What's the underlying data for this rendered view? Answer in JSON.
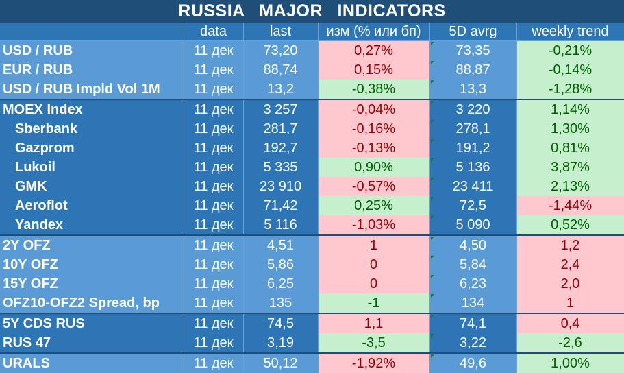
{
  "title": "RUSSIA   MAJOR   INDICATORS",
  "columns": [
    "",
    "data",
    "last",
    "изм (% или бп)",
    "5D avrg",
    "weekly trend"
  ],
  "rows": [
    {
      "name": "USD / RUB",
      "date": "11 дек",
      "last": "73,20",
      "chg": "0,27%",
      "chg_dir": "neg",
      "avg": "73,35",
      "trend": "-0,21%",
      "trend_dir": "pos",
      "group": "light",
      "indent": false,
      "sep": false
    },
    {
      "name": "EUR / RUB",
      "date": "11 дек",
      "last": "88,74",
      "chg": "0,15%",
      "chg_dir": "neg",
      "avg": "88,87",
      "trend": "-0,14%",
      "trend_dir": "pos",
      "group": "light",
      "indent": false,
      "sep": false
    },
    {
      "name": "USD / RUB Impld Vol 1M",
      "date": "11 дек",
      "last": "13,2",
      "chg": "-0,38%",
      "chg_dir": "pos",
      "avg": "13,3",
      "trend": "-1,28%",
      "trend_dir": "pos",
      "group": "light",
      "indent": false,
      "sep": false
    },
    {
      "name": "MOEX Index",
      "date": "11 дек",
      "last": "3 257",
      "chg": "-0,04%",
      "chg_dir": "neg",
      "avg": "3 220",
      "trend": "1,14%",
      "trend_dir": "pos",
      "group": "dark",
      "indent": false,
      "sep": true
    },
    {
      "name": "Sberbank",
      "date": "11 дек",
      "last": "281,7",
      "chg": "-0,16%",
      "chg_dir": "neg",
      "avg": "278,1",
      "trend": "1,30%",
      "trend_dir": "pos",
      "group": "dark",
      "indent": true,
      "sep": false
    },
    {
      "name": "Gazprom",
      "date": "11 дек",
      "last": "192,7",
      "chg": "-0,13%",
      "chg_dir": "neg",
      "avg": "191,2",
      "trend": "0,81%",
      "trend_dir": "pos",
      "group": "dark",
      "indent": true,
      "sep": false
    },
    {
      "name": "Lukoil",
      "date": "11 дек",
      "last": "5 335",
      "chg": "0,90%",
      "chg_dir": "pos",
      "avg": "5 136",
      "trend": "3,87%",
      "trend_dir": "pos",
      "group": "dark",
      "indent": true,
      "sep": false
    },
    {
      "name": "GMK",
      "date": "11 дек",
      "last": "23 910",
      "chg": "-0,57%",
      "chg_dir": "neg",
      "avg": "23 411",
      "trend": "2,13%",
      "trend_dir": "pos",
      "group": "dark",
      "indent": true,
      "sep": false
    },
    {
      "name": "Aeroflot",
      "date": "11 дек",
      "last": "71,42",
      "chg": "0,25%",
      "chg_dir": "pos",
      "avg": "72,5",
      "trend": "-1,44%",
      "trend_dir": "neg",
      "group": "dark",
      "indent": true,
      "sep": false
    },
    {
      "name": "Yandex",
      "date": "11 дек",
      "last": "5 116",
      "chg": "-1,03%",
      "chg_dir": "neg",
      "avg": "5 090",
      "trend": "0,52%",
      "trend_dir": "pos",
      "group": "dark",
      "indent": true,
      "sep": false
    },
    {
      "name": "2Y OFZ",
      "date": "11 дек",
      "last": "4,51",
      "chg": "1",
      "chg_dir": "neg",
      "avg": "4,50",
      "trend": "1,2",
      "trend_dir": "neg",
      "group": "light",
      "indent": false,
      "sep": true
    },
    {
      "name": "10Y OFZ",
      "date": "11 дек",
      "last": "5,86",
      "chg": "0",
      "chg_dir": "neg",
      "avg": "5,84",
      "trend": "2,4",
      "trend_dir": "neg",
      "group": "light",
      "indent": false,
      "sep": false
    },
    {
      "name": "15Y OFZ",
      "date": "11 дек",
      "last": "6,25",
      "chg": "0",
      "chg_dir": "neg",
      "avg": "6,23",
      "trend": "2,0",
      "trend_dir": "neg",
      "group": "light",
      "indent": false,
      "sep": false
    },
    {
      "name": "OFZ10-OFZ2 Spread, bp",
      "date": "11 дек",
      "last": "135",
      "chg": "-1",
      "chg_dir": "pos",
      "avg": "134",
      "trend": "1",
      "trend_dir": "neg",
      "group": "light",
      "indent": false,
      "sep": false
    },
    {
      "name": "5Y CDS RUS",
      "date": "11 дек",
      "last": "74,5",
      "chg": "1,1",
      "chg_dir": "neg",
      "avg": "74,1",
      "trend": "0,4",
      "trend_dir": "neg",
      "group": "dark",
      "indent": false,
      "sep": true
    },
    {
      "name": "RUS 47",
      "date": "11 дек",
      "last": "3,19",
      "chg": "-3,5",
      "chg_dir": "pos",
      "avg": "3,22",
      "trend": "-2,6",
      "trend_dir": "pos",
      "group": "dark",
      "indent": false,
      "sep": false
    },
    {
      "name": "URALS",
      "date": "11 дек",
      "last": "50,12",
      "chg": "-1,92%",
      "chg_dir": "neg",
      "avg": "49,6",
      "trend": "1,00%",
      "trend_dir": "pos",
      "group": "light",
      "indent": false,
      "sep": true
    }
  ],
  "colors": {
    "header_bg": "#1f4e79",
    "light_row": "#5b9bd5",
    "dark_row": "#2e75b6",
    "positive_bg": "#c6efce",
    "positive_text": "#006100",
    "negative_bg": "#ffc7ce",
    "negative_text": "#9c0006"
  }
}
